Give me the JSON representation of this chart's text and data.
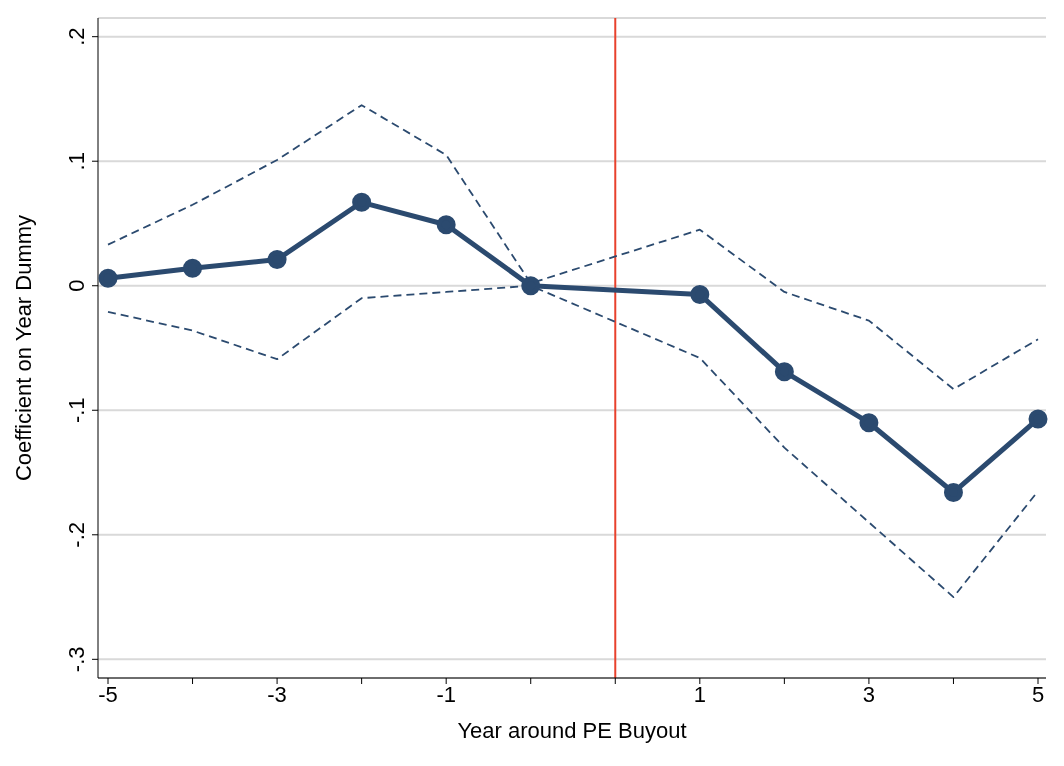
{
  "chart_data": {
    "type": "line",
    "xlabel": "Year around PE Buyout",
    "ylabel": "Coefficient on Year Dummy",
    "categories": [
      "-5",
      null,
      "-3",
      null,
      "-1",
      null,
      null,
      "1",
      null,
      "3",
      null,
      "5"
    ],
    "series": [
      {
        "color": "#2b4a6f",
        "values": [
          0.006,
          0.014,
          0.021,
          0.067,
          0.049,
          0,
          null,
          -0.007,
          -0.069,
          -0.11,
          -0.166,
          -0.107
        ],
        "marker": "circle",
        "line_style": "solid"
      },
      {
        "color": "#2b4a6f",
        "values": [
          0.033,
          0.065,
          0.101,
          0.145,
          0.105,
          0.002,
          null,
          0.045,
          -0.005,
          -0.028,
          -0.083,
          -0.043
        ],
        "marker": "none",
        "line_style": "dashed"
      },
      {
        "color": "#2b4a6f",
        "values": [
          -0.021,
          -0.036,
          -0.059,
          -0.01,
          -0.005,
          0,
          null,
          -0.058,
          -0.13,
          -0.19,
          -0.25,
          -0.165
        ],
        "marker": "none",
        "line_style": "dashed"
      }
    ],
    "ylim": [
      -0.315,
      0.215
    ],
    "yticks": [
      {
        "value": -0.3,
        "label": "-.3"
      },
      {
        "value": -0.2,
        "label": "-.2"
      },
      {
        "value": -0.1,
        "label": "-.1"
      },
      0,
      {
        "value": 0.1,
        "label": ".1"
      },
      {
        "value": 0.2,
        "label": ".2"
      }
    ],
    "grid": "y"
  }
}
